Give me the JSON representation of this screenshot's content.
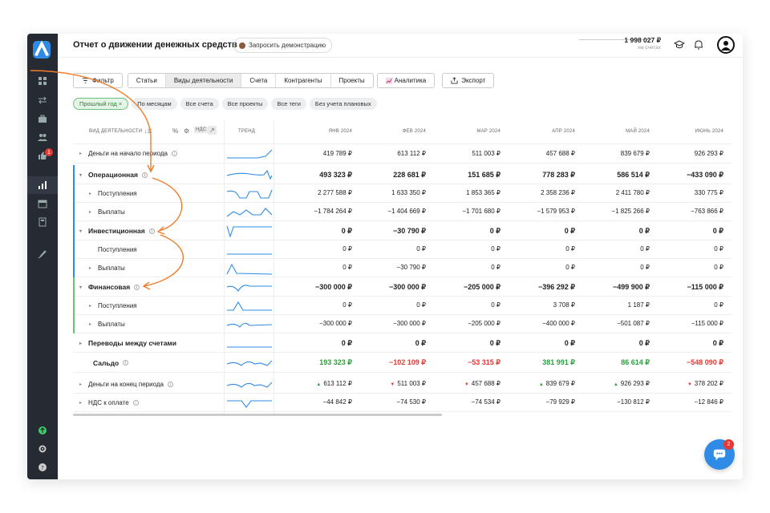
{
  "header": {
    "title": "Отчет о движении денежных средств",
    "demo_label": "Запросить демонстрацию",
    "balance_value": "1 998 027 ₽",
    "balance_sub": "на счетах"
  },
  "sidebar": {
    "badge": "1"
  },
  "toolbar": {
    "filter_label": "Фильтр",
    "tabs": [
      "Статьи",
      "Виды деятельности",
      "Счета",
      "Контрагенты",
      "Проекты",
      "Аналитика"
    ],
    "export_label": "Экспорт"
  },
  "chips": [
    "Прошлый год ×",
    "По месяцам",
    "Все счета",
    "Все проекты",
    "Все теги",
    "Без учета плановых"
  ],
  "table": {
    "col_type": "ВИД ДЕЯТЕЛЬНОСТИ",
    "col_vat": "НДС",
    "col_trend": "ТРЕНД",
    "months": [
      "ЯНВ 2024",
      "ФЕВ 2024",
      "МАР 2024",
      "АПР 2024",
      "МАЙ 2024",
      "ИЮНЬ 2024"
    ],
    "rows": [
      {
        "name": "Деньги на начало периода",
        "values": [
          "419 789 ₽",
          "613 112 ₽",
          "511 003 ₽",
          "457 688 ₽",
          "839 679 ₽",
          "926 293 ₽"
        ]
      },
      {
        "name": "Операционная",
        "values": [
          "493 323 ₽",
          "228 681 ₽",
          "151 685 ₽",
          "778 283 ₽",
          "586 514 ₽",
          "−433 090 ₽"
        ]
      },
      {
        "name": "Поступления",
        "values": [
          "2 277 588 ₽",
          "1 633 350 ₽",
          "1 853 365 ₽",
          "2 358 236 ₽",
          "2 411 780 ₽",
          "330 775 ₽"
        ]
      },
      {
        "name": "Выплаты",
        "values": [
          "−1 784 264 ₽",
          "−1 404 669 ₽",
          "−1 701 680 ₽",
          "−1 579 953 ₽",
          "−1 825 266 ₽",
          "−763 866 ₽"
        ]
      },
      {
        "name": "Инвестиционная",
        "values": [
          "0 ₽",
          "−30 790 ₽",
          "0 ₽",
          "0 ₽",
          "0 ₽",
          "0 ₽"
        ]
      },
      {
        "name": "Поступления",
        "values": [
          "0 ₽",
          "0 ₽",
          "0 ₽",
          "0 ₽",
          "0 ₽",
          "0 ₽"
        ]
      },
      {
        "name": "Выплаты",
        "values": [
          "0 ₽",
          "−30 790 ₽",
          "0 ₽",
          "0 ₽",
          "0 ₽",
          "0 ₽"
        ]
      },
      {
        "name": "Финансовая",
        "values": [
          "−300 000 ₽",
          "−300 000 ₽",
          "−205 000 ₽",
          "−396 292 ₽",
          "−499 900 ₽",
          "−115 000 ₽"
        ]
      },
      {
        "name": "Поступления",
        "values": [
          "0 ₽",
          "0 ₽",
          "0 ₽",
          "3 708 ₽",
          "1 187 ₽",
          "0 ₽"
        ]
      },
      {
        "name": "Выплаты",
        "values": [
          "−300 000 ₽",
          "−300 000 ₽",
          "−205 000 ₽",
          "−400 000 ₽",
          "−501 087 ₽",
          "−115 000 ₽"
        ]
      },
      {
        "name": "Переводы между счетами",
        "values": [
          "0 ₽",
          "0 ₽",
          "0 ₽",
          "0 ₽",
          "0 ₽",
          "0 ₽"
        ]
      },
      {
        "name": "Сальдо",
        "values": [
          "193 323 ₽",
          "−102 109 ₽",
          "−53 315 ₽",
          "381 991 ₽",
          "86 614 ₽",
          "−548 090 ₽"
        ]
      },
      {
        "name": "Деньги на конец периода",
        "values": [
          "613 112 ₽",
          "511 003 ₽",
          "457 688 ₽",
          "839 679 ₽",
          "926 293 ₽",
          "378 202 ₽"
        ]
      },
      {
        "name": "НДС к оплате",
        "values": [
          "−44 842 ₽",
          "−74 530 ₽",
          "−74 534 ₽",
          "−79 929 ₽",
          "−130 812 ₽",
          "−12 846 ₽"
        ]
      }
    ]
  },
  "chat_badge": "2",
  "colors": {
    "accent": "#2f8be6",
    "positive": "#2e9e3e",
    "negative": "#e53935",
    "arrow": "#f07d2a"
  }
}
